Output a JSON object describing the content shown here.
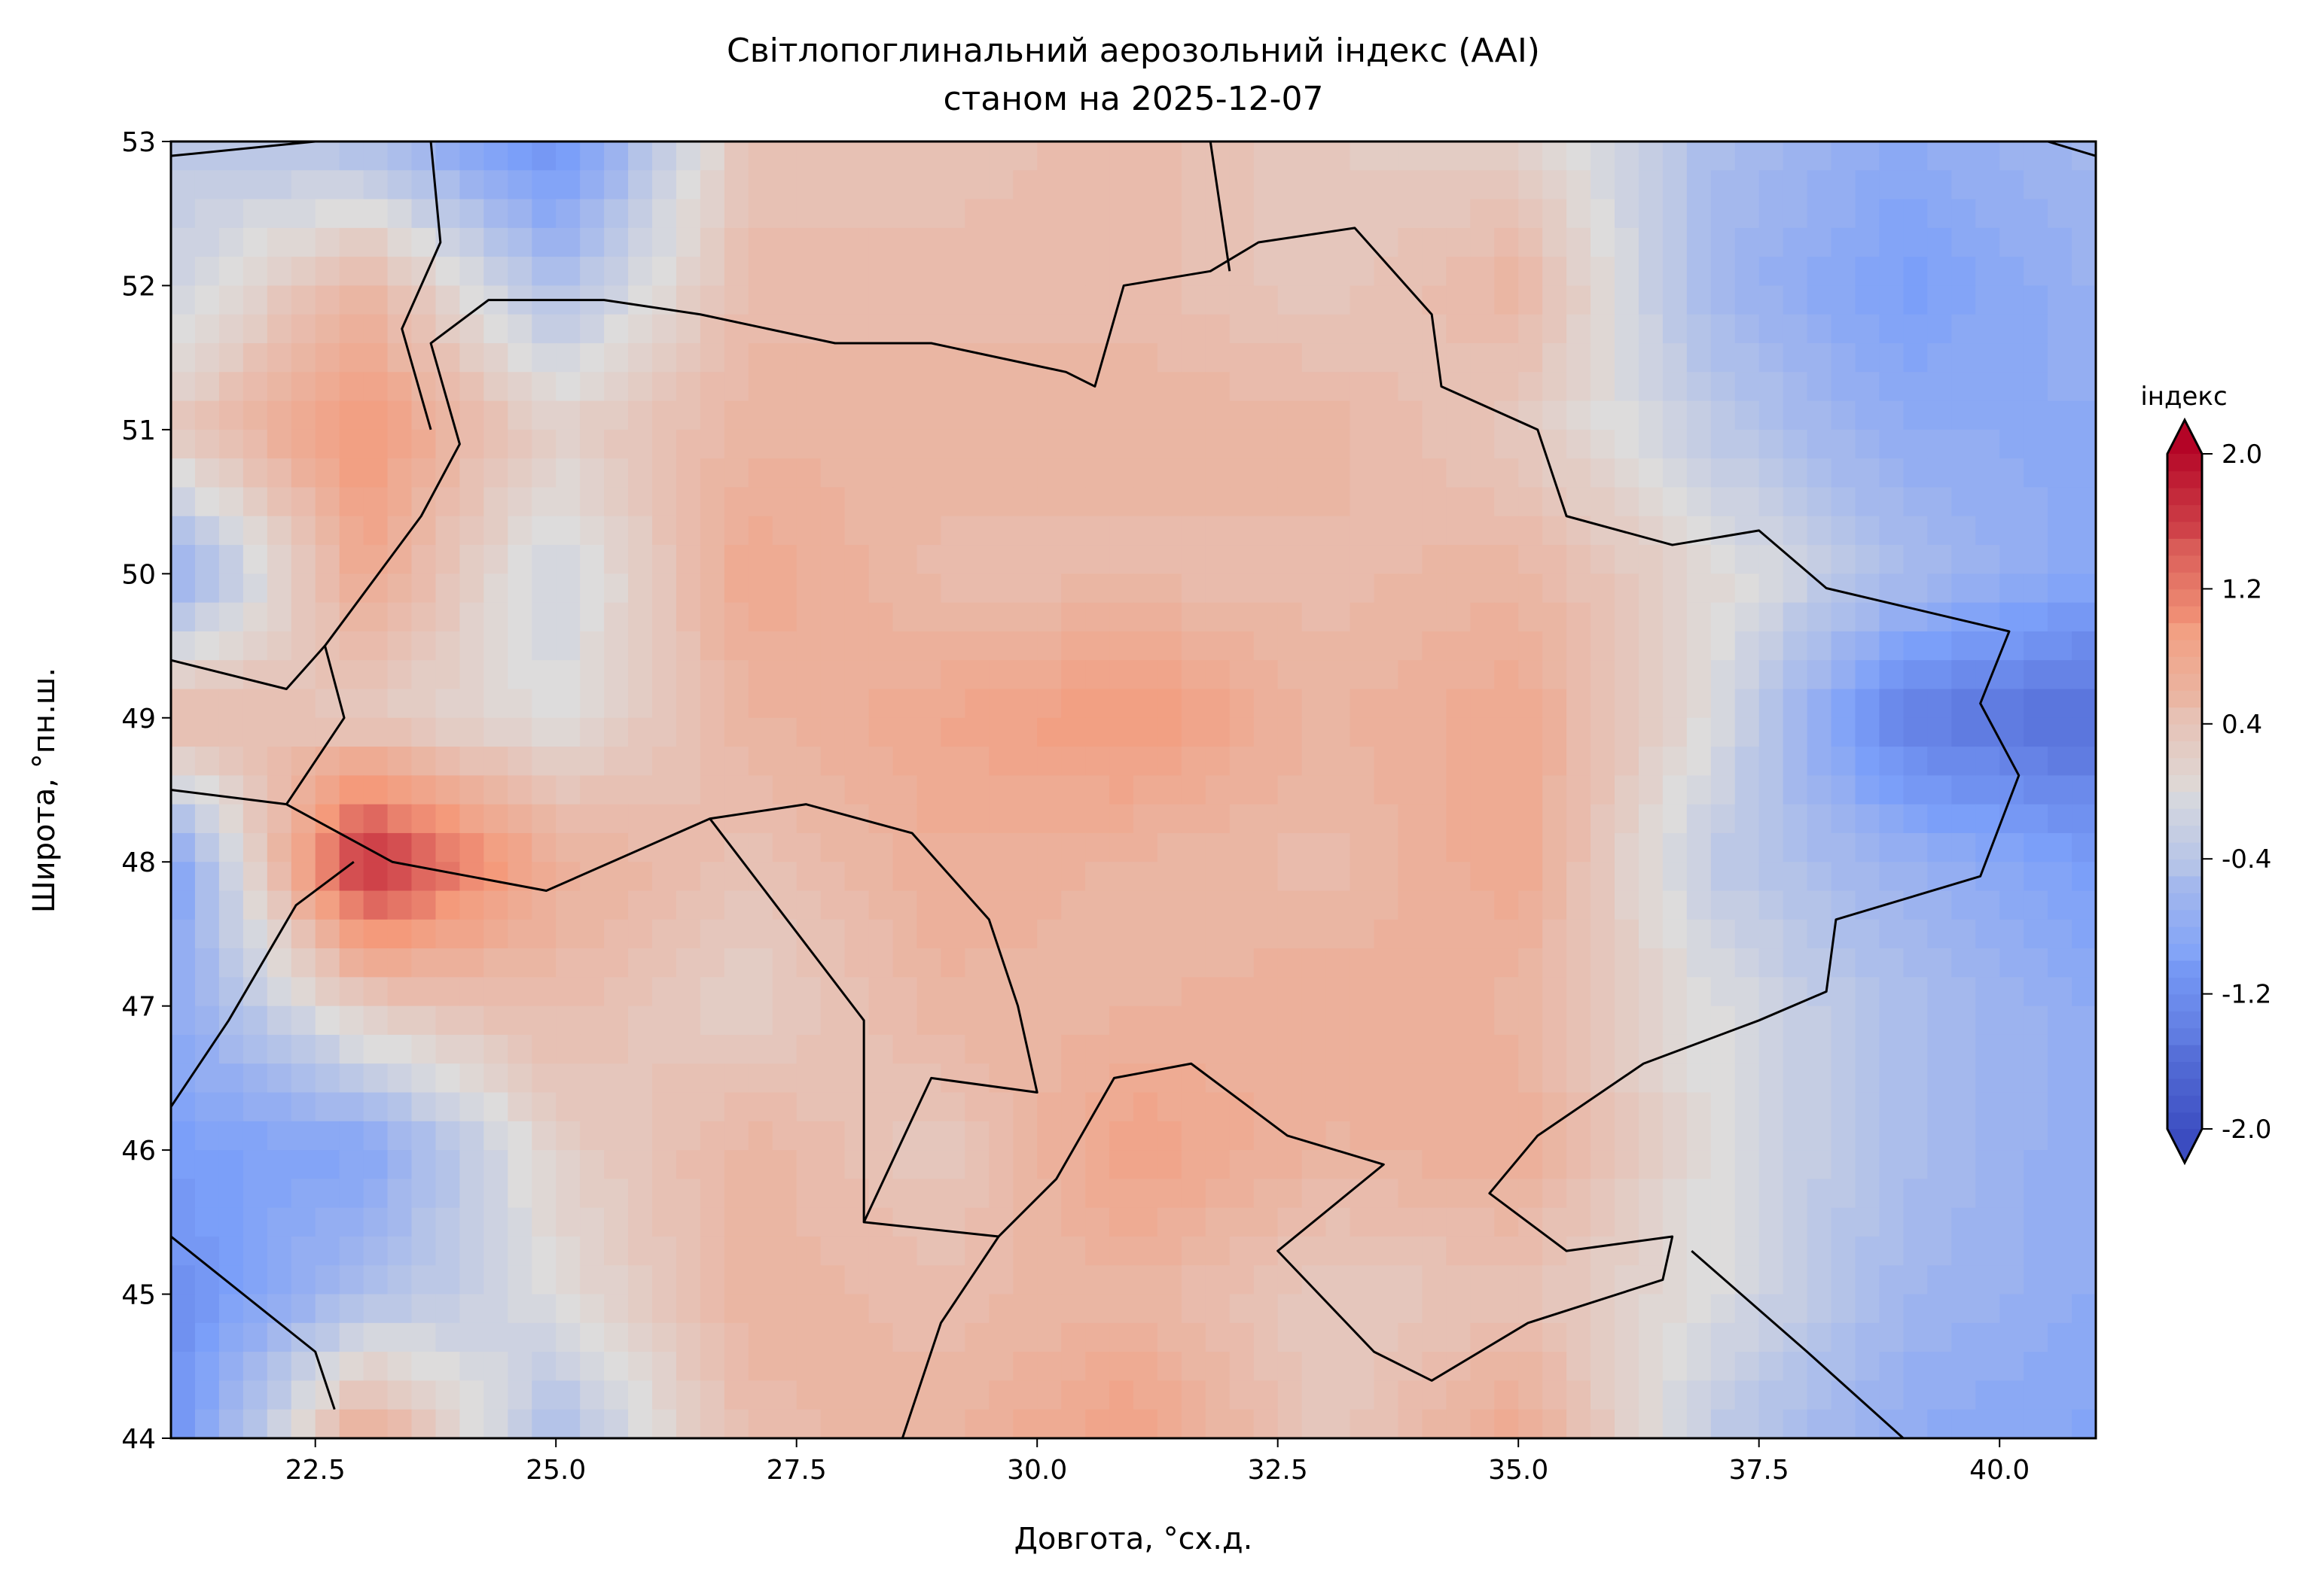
{
  "chart_data": {
    "type": "heatmap",
    "title": "Світлопоглинальний аерозольний індекс (AAI)",
    "subtitle": "станом на 2025-12-07",
    "xlabel": "Довгота, °сх.д.",
    "ylabel": "Широта, °пн.ш.",
    "xlim": [
      21,
      41
    ],
    "ylim": [
      44,
      53
    ],
    "xticks": [
      "22.5",
      "25.0",
      "27.5",
      "30.0",
      "32.5",
      "35.0",
      "37.5",
      "40.0"
    ],
    "xtick_values": [
      22.5,
      25,
      27.5,
      30,
      32.5,
      35,
      37.5,
      40
    ],
    "yticks": [
      "44",
      "45",
      "46",
      "47",
      "48",
      "49",
      "50",
      "51",
      "52",
      "53"
    ],
    "ytick_values": [
      44,
      45,
      46,
      47,
      48,
      49,
      50,
      51,
      52,
      53
    ],
    "grid_lon": [
      21,
      23,
      25,
      27,
      29,
      31,
      33,
      35,
      37,
      39,
      41
    ],
    "grid_lat": [
      53,
      52,
      51,
      50,
      49,
      48,
      47,
      46,
      45,
      44
    ],
    "values": [
      [
        -0.3,
        -0.5,
        -1.2,
        0.4,
        0.4,
        0.5,
        0.3,
        0.2,
        -0.5,
        -0.8,
        -0.6
      ],
      [
        -0.2,
        0.6,
        -0.5,
        0.5,
        0.5,
        0.5,
        0.3,
        0.6,
        -0.6,
        -1.0,
        -0.7
      ],
      [
        0.3,
        1.0,
        0.2,
        0.6,
        0.6,
        0.6,
        0.6,
        0.3,
        -0.3,
        -0.8,
        -0.8
      ],
      [
        -0.8,
        0.8,
        -0.2,
        0.8,
        0.5,
        0.5,
        0.5,
        0.6,
        0.1,
        -0.5,
        -0.9
      ],
      [
        0.6,
        0.3,
        0.0,
        0.6,
        0.8,
        1.0,
        0.6,
        0.8,
        0.0,
        -1.4,
        -1.6
      ],
      [
        -1.0,
        1.8,
        0.7,
        0.4,
        0.7,
        0.6,
        0.5,
        0.8,
        -0.3,
        -0.7,
        -1.0
      ],
      [
        -0.8,
        0.3,
        0.5,
        0.2,
        0.6,
        0.6,
        0.7,
        0.6,
        0.0,
        -0.5,
        -0.8
      ],
      [
        -1.0,
        -0.9,
        0.2,
        0.6,
        0.3,
        0.9,
        0.6,
        0.7,
        0.0,
        -0.5,
        -0.8
      ],
      [
        -1.2,
        -0.5,
        0.0,
        0.6,
        0.5,
        0.6,
        0.3,
        0.4,
        0.0,
        -0.6,
        -0.8
      ],
      [
        -1.2,
        0.8,
        -0.5,
        0.5,
        0.6,
        0.9,
        0.3,
        0.8,
        -0.3,
        -0.8,
        -0.9
      ]
    ],
    "colorbar": {
      "label": "індекс",
      "range": [
        -2.0,
        2.0
      ],
      "ticks": [
        "2.0",
        "1.2",
        "0.4",
        "-0.4",
        "-1.2",
        "-2.0"
      ],
      "tick_values": [
        2.0,
        1.2,
        0.4,
        -0.4,
        -1.2,
        -2.0
      ],
      "extend": "both",
      "colormap": [
        "#3b4cc0",
        "#7b9ff9",
        "#dddcdc",
        "#f49a7b",
        "#b40426"
      ]
    },
    "grid": false
  }
}
